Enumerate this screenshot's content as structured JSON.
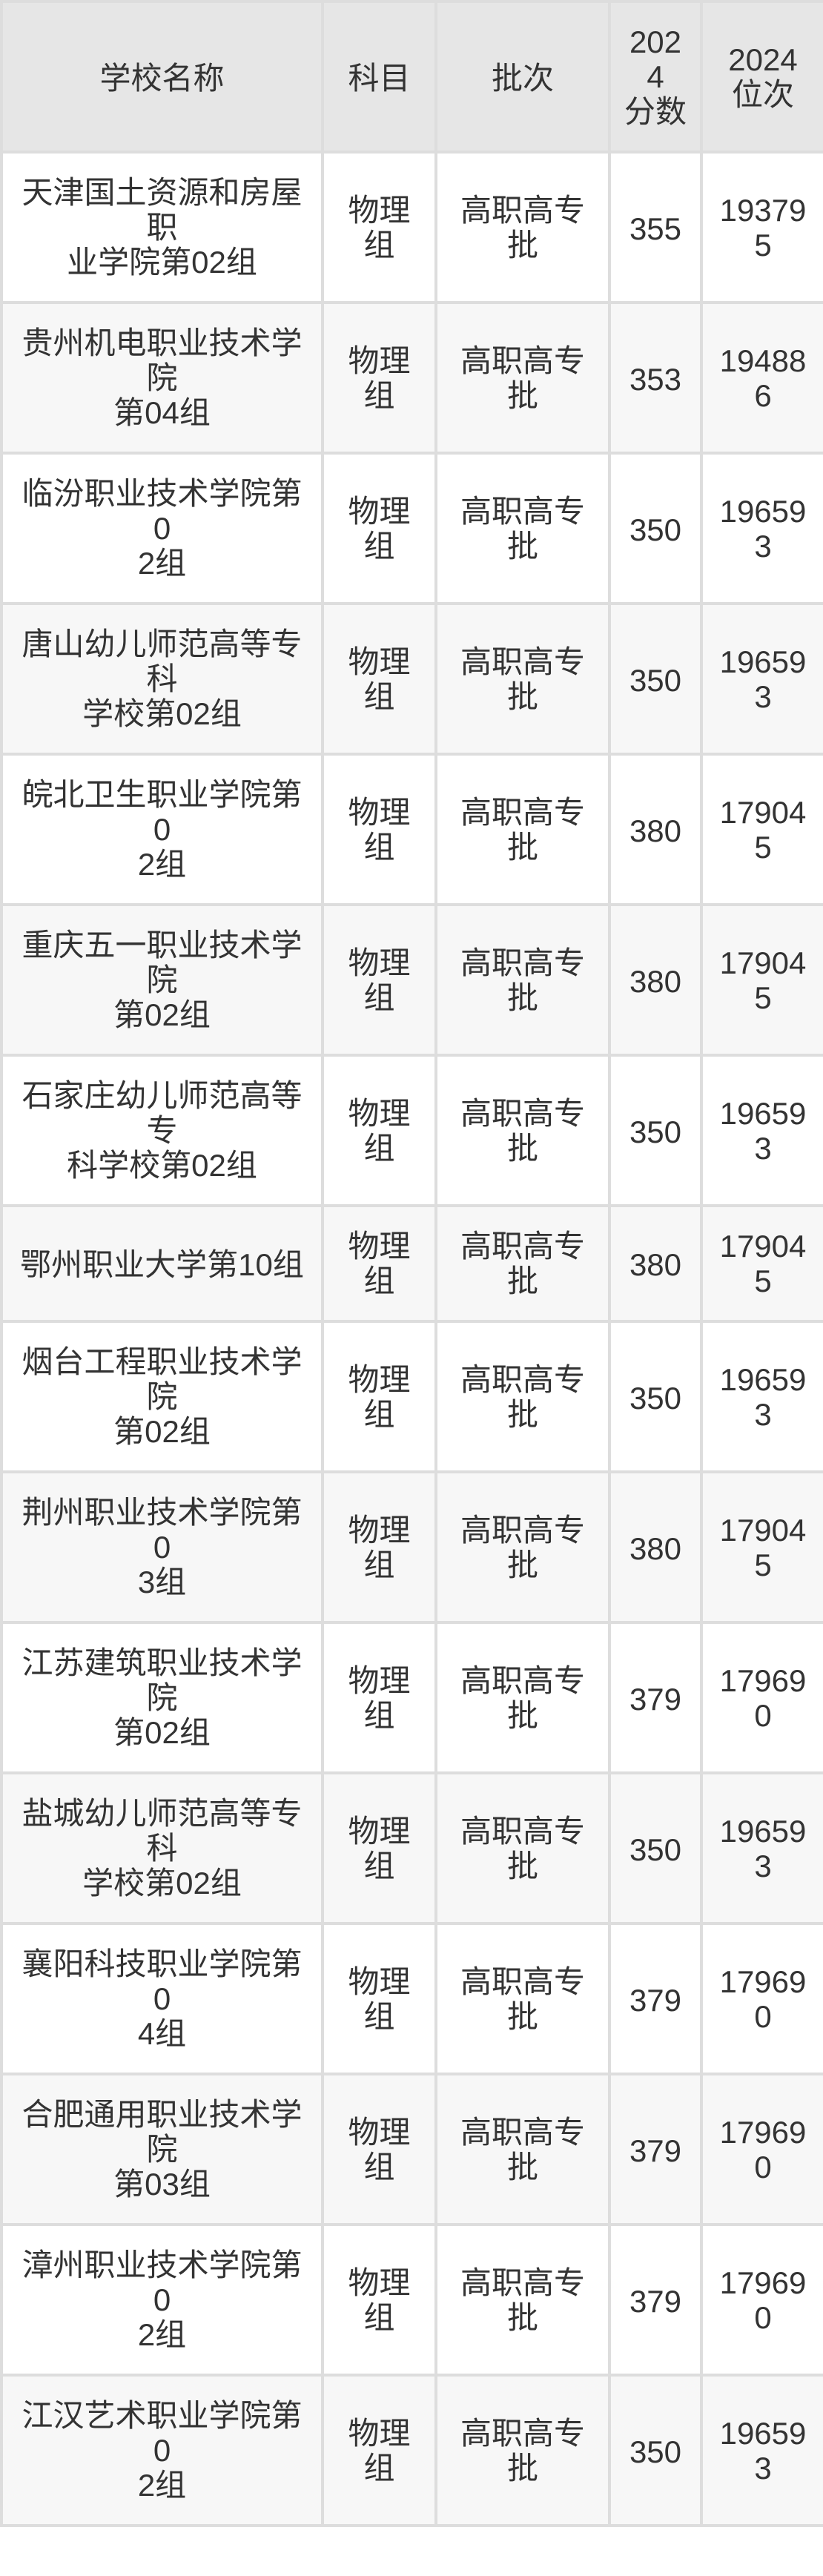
{
  "table": {
    "headers": {
      "school": "学校名称",
      "subject": "科目",
      "batch": "批次",
      "score": {
        "year": "2024",
        "label": "分数"
      },
      "rank": {
        "year": "2024",
        "label": "位次"
      }
    },
    "rows": [
      {
        "school": "天津国土资源和房屋职\n业学院第02组",
        "subject": "物理组",
        "batch": "高职高专批",
        "score": "355",
        "rank": "193795"
      },
      {
        "school": "贵州机电职业技术学院\n第04组",
        "subject": "物理组",
        "batch": "高职高专批",
        "score": "353",
        "rank": "194886"
      },
      {
        "school": "临汾职业技术学院第0\n2组",
        "subject": "物理组",
        "batch": "高职高专批",
        "score": "350",
        "rank": "196593"
      },
      {
        "school": "唐山幼儿师范高等专科\n学校第02组",
        "subject": "物理组",
        "batch": "高职高专批",
        "score": "350",
        "rank": "196593"
      },
      {
        "school": "皖北卫生职业学院第0\n2组",
        "subject": "物理组",
        "batch": "高职高专批",
        "score": "380",
        "rank": "179045"
      },
      {
        "school": "重庆五一职业技术学院\n第02组",
        "subject": "物理组",
        "batch": "高职高专批",
        "score": "380",
        "rank": "179045"
      },
      {
        "school": "石家庄幼儿师范高等专\n科学校第02组",
        "subject": "物理组",
        "batch": "高职高专批",
        "score": "350",
        "rank": "196593"
      },
      {
        "school": "鄂州职业大学第10组",
        "subject": "物理组",
        "batch": "高职高专批",
        "score": "380",
        "rank": "179045"
      },
      {
        "school": "烟台工程职业技术学院\n第02组",
        "subject": "物理组",
        "batch": "高职高专批",
        "score": "350",
        "rank": "196593"
      },
      {
        "school": "荆州职业技术学院第0\n3组",
        "subject": "物理组",
        "batch": "高职高专批",
        "score": "380",
        "rank": "179045"
      },
      {
        "school": "江苏建筑职业技术学院\n第02组",
        "subject": "物理组",
        "batch": "高职高专批",
        "score": "379",
        "rank": "179690"
      },
      {
        "school": "盐城幼儿师范高等专科\n学校第02组",
        "subject": "物理组",
        "batch": "高职高专批",
        "score": "350",
        "rank": "196593"
      },
      {
        "school": "襄阳科技职业学院第0\n4组",
        "subject": "物理组",
        "batch": "高职高专批",
        "score": "379",
        "rank": "179690"
      },
      {
        "school": "合肥通用职业技术学院\n第03组",
        "subject": "物理组",
        "batch": "高职高专批",
        "score": "379",
        "rank": "179690"
      },
      {
        "school": "漳州职业技术学院第0\n2组",
        "subject": "物理组",
        "batch": "高职高专批",
        "score": "379",
        "rank": "179690"
      },
      {
        "school": "江汉艺术职业学院第0\n2组",
        "subject": "物理组",
        "batch": "高职高专批",
        "score": "350",
        "rank": "196593"
      }
    ]
  }
}
